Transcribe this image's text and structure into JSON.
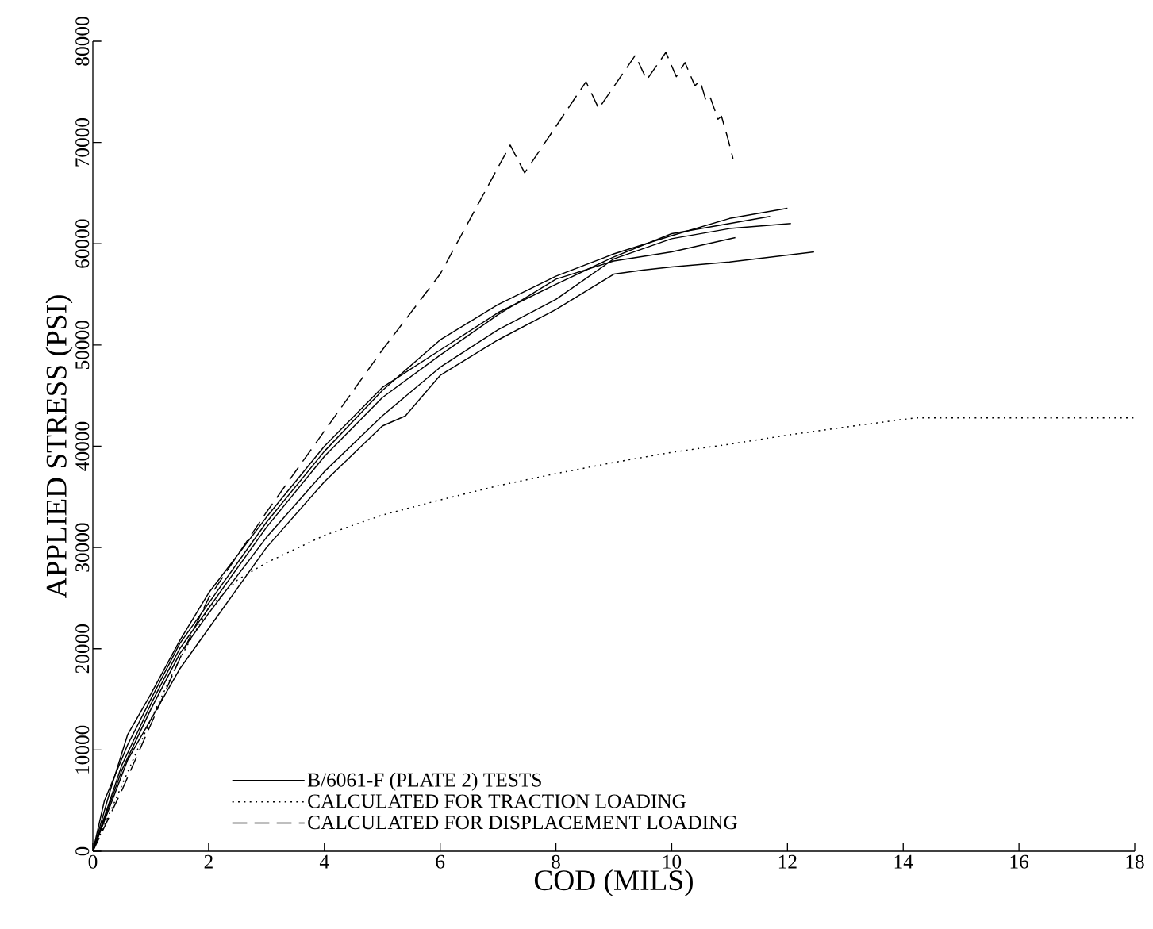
{
  "chart_data": {
    "type": "line",
    "xlabel": "COD (MILS)",
    "ylabel": "APPLIED STRESS (PSI)",
    "xlim": [
      0,
      18
    ],
    "xticks": [
      0,
      2,
      4,
      6,
      8,
      10,
      12,
      14,
      16,
      18
    ],
    "ylim": [
      0,
      80000
    ],
    "yticks": [
      0,
      10000,
      20000,
      30000,
      40000,
      50000,
      60000,
      70000,
      80000
    ],
    "grid": false,
    "legend": "bottom left",
    "marker": "none",
    "series": [
      {
        "name": "B/6061-F (PLATE 2) TESTS",
        "color": "#000000",
        "line_style": "solid",
        "x": [
          0,
          0.2,
          0.6,
          1,
          1.5,
          2,
          3,
          4,
          5,
          6,
          7,
          8,
          9,
          10,
          11,
          12
        ],
        "values": [
          0,
          5000,
          10500,
          15000,
          20500,
          24500,
          32500,
          39500,
          45500,
          50500,
          54000,
          56800,
          59000,
          60800,
          62500,
          63500
        ]
      },
      {
        "name": "CALCULATED FOR TRACTION LOADING",
        "color": "#000000",
        "line_style": "dotted",
        "x": [
          0,
          0.5,
          1,
          1.5,
          2,
          2.5,
          3,
          4,
          5,
          6,
          7,
          8,
          9,
          10,
          11,
          12,
          13,
          14.2,
          18
        ],
        "values": [
          0,
          6500,
          13000,
          19000,
          24000,
          26800,
          28500,
          31200,
          33200,
          34700,
          36100,
          37300,
          38400,
          39400,
          40200,
          41100,
          41900,
          42800,
          42800
        ]
      },
      {
        "name": "CALCULATED FOR DISPLACEMENT LOADING",
        "color": "#000000",
        "line_style": "dashed",
        "x": [
          0,
          0.5,
          1,
          1.5,
          2,
          3,
          4,
          5,
          6,
          7.21,
          7.46,
          8.52,
          8.74,
          9.37,
          9.57,
          9.9,
          10.08,
          10.23,
          10.4,
          10.49,
          10.6,
          10.67,
          10.8,
          10.86,
          10.97,
          11.06
        ],
        "values": [
          0,
          6000,
          12500,
          19000,
          25000,
          33500,
          41500,
          49500,
          57000,
          69750,
          67000,
          76000,
          73350,
          78600,
          76200,
          78900,
          76500,
          77900,
          75600,
          76100,
          74000,
          74400,
          72300,
          72600,
          70400,
          68400
        ]
      },
      {
        "color": "#000000",
        "line_style": "solid",
        "x": [
          0,
          0.3,
          0.6,
          1,
          1.5,
          2,
          3,
          4,
          5,
          6,
          7,
          8,
          9,
          10,
          11,
          11.7
        ],
        "values": [
          0,
          6000,
          11500,
          15500,
          20800,
          25500,
          33000,
          40000,
          45800,
          49500,
          53200,
          56000,
          58700,
          61000,
          62000,
          62700
        ]
      },
      {
        "color": "#000000",
        "line_style": "solid",
        "x": [
          0,
          0.5,
          1,
          1.5,
          2,
          3,
          4,
          5,
          6,
          7,
          8,
          9,
          10,
          11,
          12.06
        ],
        "values": [
          0,
          8000,
          14000,
          19500,
          23500,
          31000,
          37500,
          43000,
          47800,
          51500,
          54500,
          58500,
          60500,
          61500,
          62000
        ]
      },
      {
        "color": "#000000",
        "line_style": "solid",
        "x": [
          0,
          0.5,
          1,
          1.5,
          2,
          3,
          4,
          5,
          6,
          7,
          8,
          9,
          10,
          11.1
        ],
        "values": [
          0,
          8500,
          14500,
          20000,
          24000,
          32000,
          39000,
          44800,
          49000,
          53000,
          56500,
          58300,
          59200,
          60600
        ]
      },
      {
        "color": "#000000",
        "line_style": "solid",
        "x": [
          0,
          0.6,
          1,
          1.5,
          2,
          3,
          4,
          5,
          5.4,
          6,
          7,
          8,
          9,
          9.5,
          10,
          11,
          12.46
        ],
        "values": [
          0,
          9000,
          13000,
          18000,
          22000,
          30000,
          36500,
          42000,
          43000,
          47000,
          50500,
          53500,
          57000,
          57400,
          57700,
          58200,
          59200
        ]
      }
    ]
  }
}
